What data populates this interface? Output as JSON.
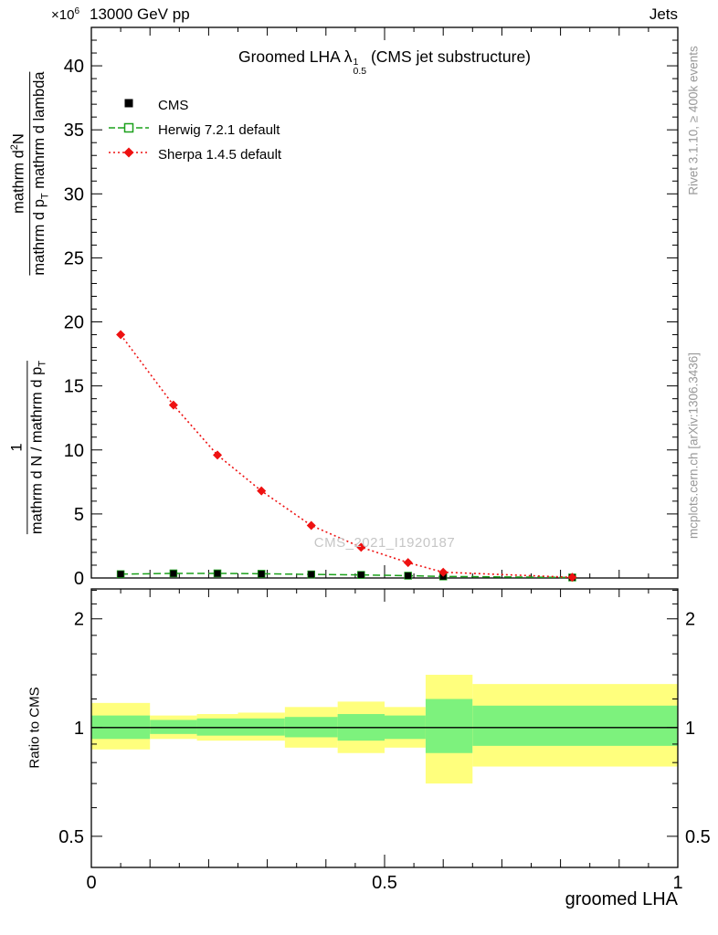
{
  "header": {
    "left": "13000 GeV pp",
    "right": "Jets"
  },
  "title": {
    "pre": "Groomed LHA ",
    "symbol": "λ",
    "sub": "0.5",
    "sup": "1",
    "post": " (CMS jet substructure)"
  },
  "y_multiplier": {
    "pre": "×10",
    "sup": "6"
  },
  "y_label": {
    "upper": {
      "num_pre": "mathrm d",
      "num_sup": "2",
      "num_post": "N",
      "den_pre": "mathrm d p",
      "den_sub": "T",
      "den_post": " mathrm d lambda"
    },
    "lower": {
      "num": "1",
      "den_pre": "mathrm d N / mathrm d p",
      "den_sub": "T",
      "den_post": ""
    }
  },
  "watermark": "CMS_2021_I1920187",
  "side_notes": {
    "top": "Rivet 3.1.10, ≥ 400k events",
    "bottom": "mcplots.cern.ch [arXiv:1306.3436]"
  },
  "ratio_label": "Ratio to CMS",
  "x_title": "groomed LHA",
  "legend": [
    {
      "label": "CMS",
      "marker": "filled-square",
      "line": "none",
      "color": "#000000"
    },
    {
      "label": "Herwig 7.2.1 default",
      "marker": "open-square",
      "line": "dashed",
      "color": "#1ba01b"
    },
    {
      "label": "Sherpa 1.4.5 default",
      "marker": "filled-diamond",
      "line": "dotted",
      "color": "#ee1111"
    }
  ],
  "colors": {
    "band_yellow": "#ffff7d",
    "band_green": "#7df27d",
    "frame": "#000000",
    "watermark": "#c6c6c6",
    "side_note": "#999999"
  },
  "chart_data": {
    "type": "line",
    "title": "Groomed LHA lambda^1_0.5 (CMS jet substructure)",
    "xlabel": "groomed LHA",
    "ylabel": "1/(dN/dp_T) d^2N/(dp_T dlambda)",
    "y_unit_multiplier": "1e6",
    "xlim": [
      0,
      1
    ],
    "ylim": [
      0,
      43
    ],
    "x_major_ticks": [
      0,
      0.5,
      1
    ],
    "x_major_tick_labels": [
      "0",
      "0.5",
      "1"
    ],
    "y_major_ticks": [
      0,
      5,
      10,
      15,
      20,
      25,
      30,
      35,
      40
    ],
    "legend_position": "top-left",
    "grid": false,
    "series": [
      {
        "name": "CMS",
        "x": [
          0.05,
          0.14,
          0.215,
          0.29,
          0.375,
          0.46,
          0.54,
          0.6,
          0.82
        ],
        "y": [
          0.3,
          0.35,
          0.35,
          0.32,
          0.28,
          0.24,
          0.18,
          0.12,
          0.04
        ]
      },
      {
        "name": "Herwig 7.2.1 default",
        "x": [
          0.05,
          0.14,
          0.215,
          0.29,
          0.375,
          0.46,
          0.54,
          0.6,
          0.82
        ],
        "y": [
          0.3,
          0.36,
          0.36,
          0.33,
          0.28,
          0.24,
          0.18,
          0.12,
          0.04
        ]
      },
      {
        "name": "Sherpa 1.4.5 default",
        "x": [
          0.05,
          0.14,
          0.215,
          0.29,
          0.375,
          0.46,
          0.54,
          0.6,
          0.82
        ],
        "y": [
          19.0,
          13.5,
          9.6,
          6.8,
          4.1,
          2.4,
          1.2,
          0.45,
          0.05
        ]
      }
    ],
    "ratio_panel": {
      "ylabel": "Ratio to CMS",
      "scale": "log",
      "ylim": [
        0.41,
        2.42
      ],
      "y_ticks": [
        0.5,
        1,
        2
      ],
      "y_tick_labels": [
        "0.5",
        "1",
        "2"
      ],
      "reference_line": 1.0,
      "bands": [
        {
          "x0": 0.0,
          "x1": 0.1,
          "yellow": [
            0.87,
            1.17
          ],
          "green": [
            0.93,
            1.08
          ]
        },
        {
          "x0": 0.1,
          "x1": 0.18,
          "yellow": [
            0.93,
            1.08
          ],
          "green": [
            0.96,
            1.05
          ]
        },
        {
          "x0": 0.18,
          "x1": 0.25,
          "yellow": [
            0.92,
            1.09
          ],
          "green": [
            0.95,
            1.06
          ]
        },
        {
          "x0": 0.25,
          "x1": 0.33,
          "yellow": [
            0.92,
            1.1
          ],
          "green": [
            0.95,
            1.06
          ]
        },
        {
          "x0": 0.33,
          "x1": 0.42,
          "yellow": [
            0.88,
            1.14
          ],
          "green": [
            0.94,
            1.07
          ]
        },
        {
          "x0": 0.42,
          "x1": 0.5,
          "yellow": [
            0.85,
            1.18
          ],
          "green": [
            0.92,
            1.09
          ]
        },
        {
          "x0": 0.5,
          "x1": 0.57,
          "yellow": [
            0.88,
            1.14
          ],
          "green": [
            0.93,
            1.08
          ]
        },
        {
          "x0": 0.57,
          "x1": 0.65,
          "yellow": [
            0.7,
            1.4
          ],
          "green": [
            0.85,
            1.2
          ]
        },
        {
          "x0": 0.65,
          "x1": 1.0,
          "yellow": [
            0.78,
            1.32
          ],
          "green": [
            0.89,
            1.15
          ]
        }
      ]
    }
  }
}
